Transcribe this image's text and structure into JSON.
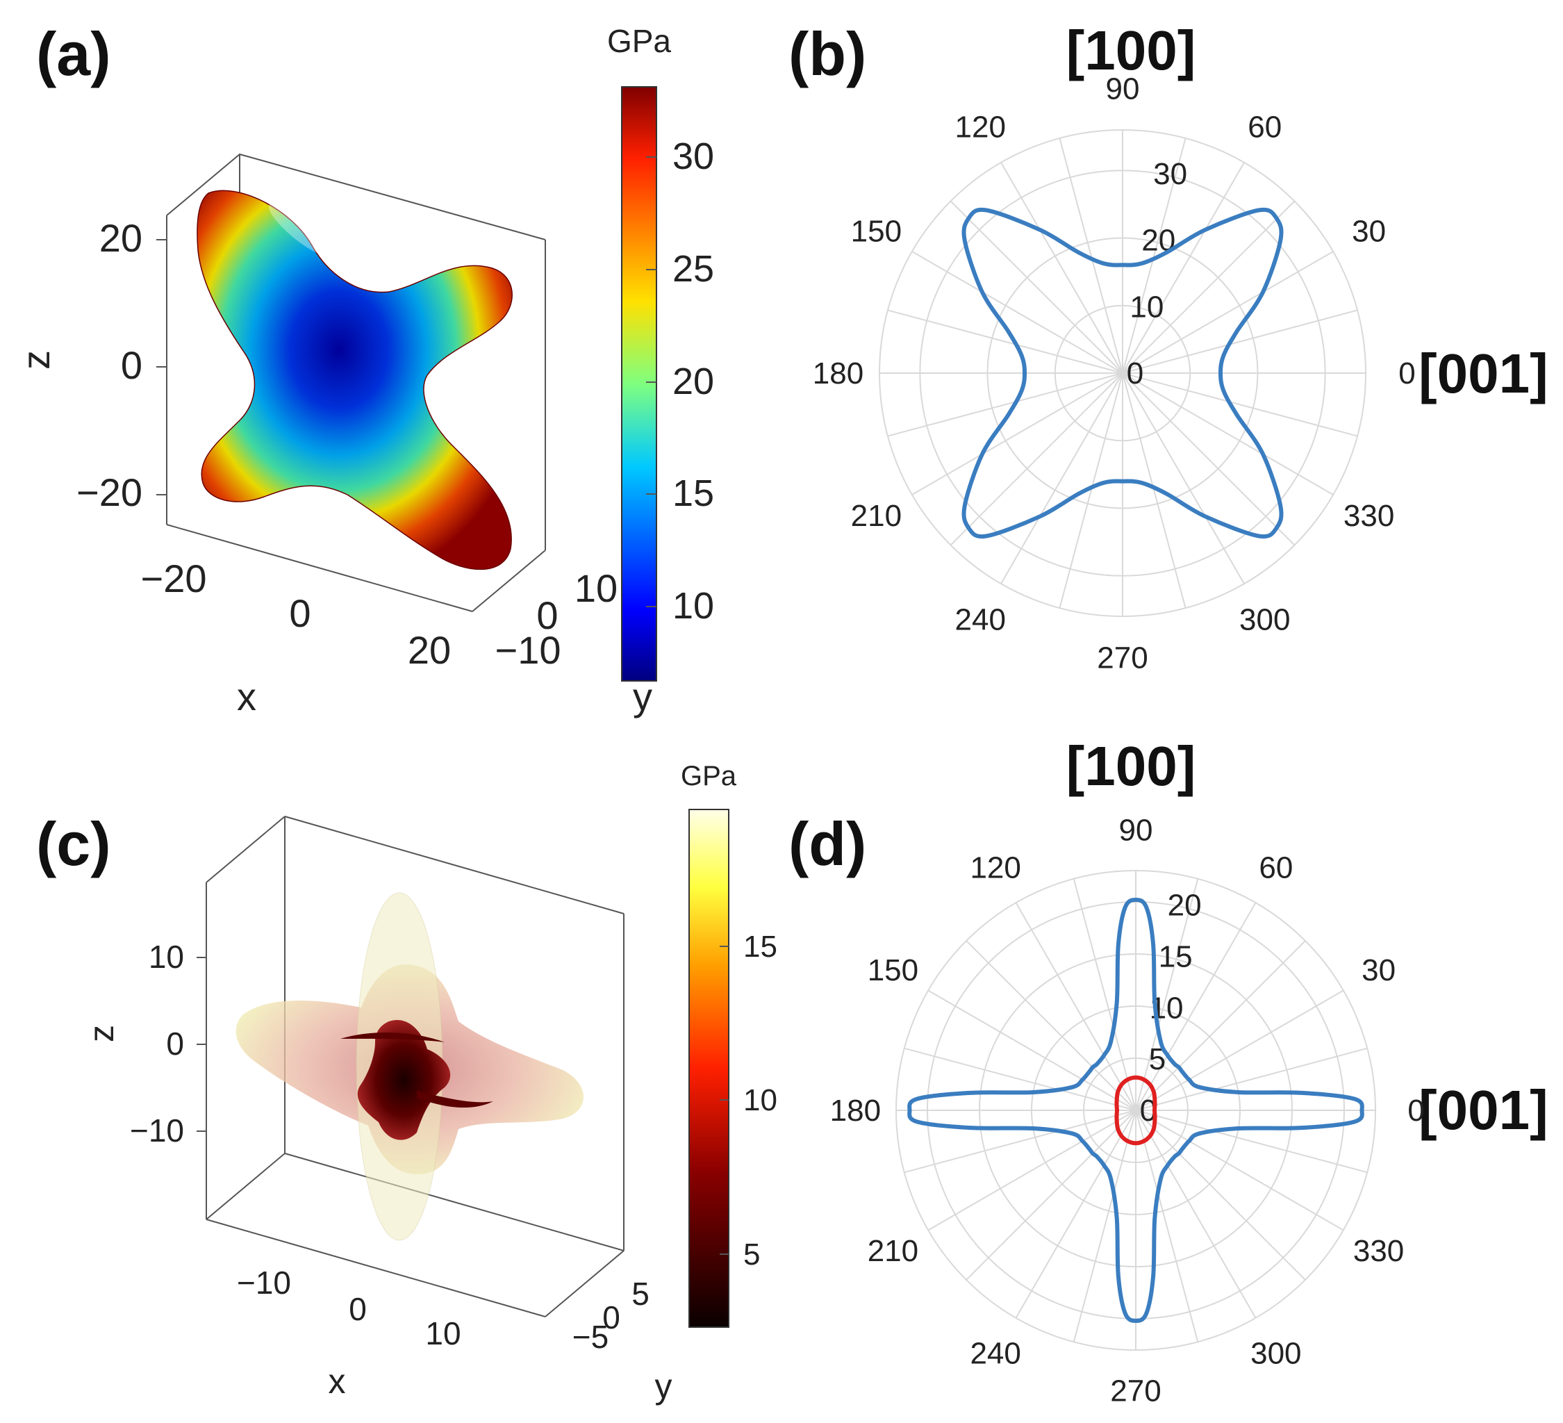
{
  "panels": {
    "a": {
      "label": "(a)",
      "colorbar": {
        "unit": "GPa",
        "ticks": [
          "30",
          "25",
          "20",
          "15",
          "10"
        ],
        "colormap": "jet"
      },
      "z_ticks": [
        "20",
        "0",
        "−20"
      ],
      "x_ticks": [
        "−20",
        "0",
        "20"
      ],
      "y_ticks": [
        "10",
        "0",
        "−10"
      ],
      "xlabel": "x",
      "ylabel": "y",
      "zlabel": "z"
    },
    "b": {
      "label": "(b)",
      "top_direction": "[100]",
      "right_direction": "[001]"
    },
    "c": {
      "label": "(c)",
      "colorbar": {
        "unit": "GPa",
        "ticks": [
          "15",
          "10",
          "5"
        ],
        "colormap": "hot"
      },
      "z_ticks": [
        "10",
        "0",
        "−10"
      ],
      "x_ticks": [
        "−10",
        "0",
        "10"
      ],
      "y_ticks": [
        "5",
        "0",
        "−5"
      ],
      "xlabel": "x",
      "ylabel": "y",
      "zlabel": "z"
    },
    "d": {
      "label": "(d)",
      "top_direction": "[100]",
      "right_direction": "[001]"
    }
  },
  "chart_data": [
    {
      "panel": "b",
      "type": "polar",
      "angle_ticks": [
        "0",
        "30",
        "60",
        "90",
        "120",
        "150",
        "180",
        "210",
        "240",
        "270",
        "300",
        "330"
      ],
      "radial_ticks": [
        "0",
        "10",
        "20",
        "30"
      ],
      "rlim": [
        0,
        36
      ],
      "series": [
        {
          "name": "blue",
          "color": "#3a7dc0",
          "angles_deg": [
            0,
            10,
            20,
            30,
            40,
            45,
            50,
            60,
            70,
            80,
            90,
            100,
            110,
            120,
            130,
            135,
            140,
            150,
            160,
            170,
            180,
            190,
            200,
            210,
            220,
            225,
            230,
            240,
            250,
            260,
            270,
            280,
            290,
            300,
            310,
            315,
            320,
            330,
            340,
            350
          ],
          "radii": [
            14.5,
            15.2,
            18,
            24,
            30.5,
            32.3,
            31.5,
            24.5,
            19,
            16.5,
            16,
            16.5,
            19,
            24.5,
            31.5,
            32.3,
            30.5,
            24,
            18,
            15.2,
            14.5,
            15.2,
            18,
            24,
            30.5,
            32.3,
            31.5,
            24.5,
            19,
            16.5,
            16,
            16.5,
            19,
            24.5,
            31.5,
            32.3,
            30.5,
            24,
            18,
            15.2
          ]
        }
      ]
    },
    {
      "panel": "d",
      "type": "polar",
      "angle_ticks": [
        "0",
        "30",
        "60",
        "90",
        "120",
        "150",
        "180",
        "210",
        "240",
        "270",
        "300",
        "330"
      ],
      "radial_ticks": [
        "0",
        "5",
        "10",
        "15",
        "20"
      ],
      "rlim": [
        0,
        23
      ],
      "series": [
        {
          "name": "blue",
          "color": "#3a7dc0",
          "angles_deg": [
            0,
            3,
            6,
            10,
            20,
            30,
            40,
            45,
            50,
            60,
            70,
            80,
            84,
            87,
            90,
            93,
            96,
            100,
            110,
            120,
            130,
            135,
            140,
            150,
            160,
            170,
            174,
            177,
            180,
            183,
            186,
            190,
            200,
            210,
            220,
            225,
            230,
            240,
            250,
            260,
            264,
            267,
            270,
            273,
            276,
            280,
            290,
            300,
            310,
            315,
            320,
            330,
            340,
            350,
            354,
            357
          ],
          "radii": [
            21.7,
            21,
            16,
            10,
            6.5,
            5.9,
            5.8,
            5.85,
            5.8,
            6.1,
            7,
            10.5,
            16,
            19.5,
            20.2,
            19.5,
            16,
            10.5,
            7,
            6.1,
            5.8,
            5.85,
            5.8,
            5.9,
            6.5,
            10,
            16,
            21,
            21.7,
            21,
            16,
            10,
            6.5,
            5.9,
            5.8,
            5.85,
            5.8,
            6.1,
            7,
            10.5,
            16,
            19.5,
            20.2,
            19.5,
            16,
            10.5,
            7,
            6.1,
            5.8,
            5.85,
            5.8,
            5.9,
            6.5,
            10,
            16,
            21
          ]
        },
        {
          "name": "red",
          "color": "#e02020",
          "angles_deg": [
            0,
            15,
            30,
            45,
            60,
            75,
            90,
            105,
            120,
            135,
            150,
            165,
            180,
            195,
            210,
            225,
            240,
            255,
            270,
            285,
            300,
            315,
            330,
            345
          ],
          "radii": [
            1.8,
            1.9,
            2.1,
            2.45,
            2.8,
            3.05,
            3.15,
            3.05,
            2.8,
            2.45,
            2.1,
            1.9,
            1.8,
            1.9,
            2.1,
            2.45,
            2.8,
            3.05,
            3.15,
            3.05,
            2.8,
            2.45,
            2.1,
            1.9
          ]
        }
      ]
    }
  ]
}
